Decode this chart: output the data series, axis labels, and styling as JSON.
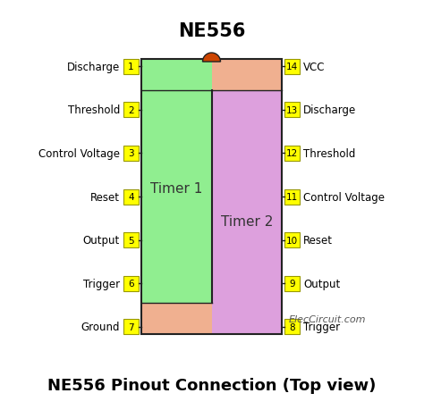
{
  "title": "NE556",
  "subtitle": "NE556 Pinout Connection (Top view)",
  "credit": "ElecCircuit.com",
  "bg_color": "#ffffff",
  "chip_outline_color": "#222222",
  "chip_green_color": "#90EE90",
  "chip_purple_color": "#DDA0DD",
  "chip_tan_color": "#F0B090",
  "notch_color": "#CC4400",
  "pin_box_color": "#FFFF00",
  "pin_box_edge": "#999900",
  "timer1_label": "Timer 1",
  "timer2_label": "Timer 2",
  "left_pins": [
    {
      "num": 1,
      "label": "Discharge"
    },
    {
      "num": 2,
      "label": "Threshold"
    },
    {
      "num": 3,
      "label": "Control Voltage"
    },
    {
      "num": 4,
      "label": "Reset"
    },
    {
      "num": 5,
      "label": "Output"
    },
    {
      "num": 6,
      "label": "Trigger"
    },
    {
      "num": 7,
      "label": "Ground"
    }
  ],
  "right_pins": [
    {
      "num": 14,
      "label": "VCC"
    },
    {
      "num": 13,
      "label": "Discharge"
    },
    {
      "num": 12,
      "label": "Threshold"
    },
    {
      "num": 11,
      "label": "Control Voltage"
    },
    {
      "num": 10,
      "label": "Reset"
    },
    {
      "num": 9,
      "label": "Output"
    },
    {
      "num": 8,
      "label": "Trigger"
    }
  ]
}
